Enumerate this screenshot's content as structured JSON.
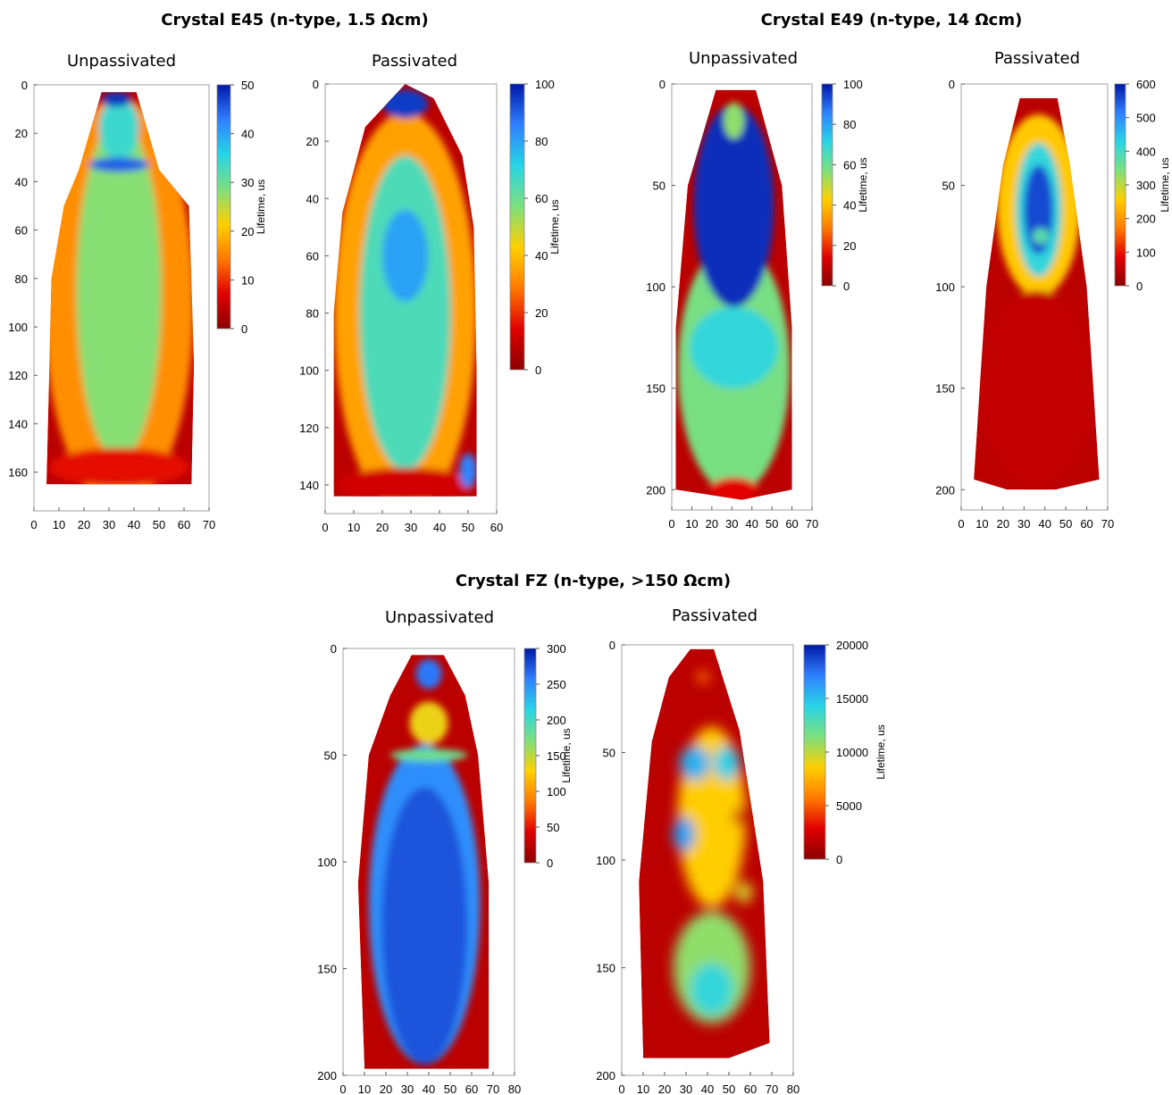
{
  "group_titles": {
    "e45": "Crystal E45 (n-type, 1.5 Ωcm)",
    "e49": "Crystal E49 (n-type, 14 Ωcm)",
    "fz": "Crystal FZ (n-type, >150 Ωcm)"
  },
  "panel_titles": {
    "e45_unpassivated": "Unpassivated",
    "e45_passivated": "Passivated",
    "e49_unpassivated": "Unpassivated",
    "e49_passivated": "Passivated",
    "fz_unpassivated": "Unpassivated",
    "fz_passivated": "Passivated"
  },
  "colorbar_label": "Lifetime, us",
  "colormap": [
    "#8b0000",
    "#e00000",
    "#ff7a00",
    "#ffd000",
    "#7de07d",
    "#28d5e6",
    "#2f80ff",
    "#0018a8"
  ],
  "chart_data": [
    {
      "id": "e45_unpassivated",
      "type": "heatmap",
      "title": "Unpassivated",
      "x_ticks": [
        0,
        10,
        20,
        30,
        40,
        50,
        60,
        70
      ],
      "y_ticks": [
        0,
        20,
        40,
        60,
        80,
        100,
        120,
        140,
        160
      ],
      "xlim": [
        0,
        70
      ],
      "ylim": [
        0,
        176
      ],
      "colorbar": {
        "label": "Lifetime, us",
        "range": [
          0,
          50
        ],
        "ticks": [
          0,
          10,
          20,
          30,
          40,
          50
        ]
      },
      "outline": [
        [
          27,
          3
        ],
        [
          41,
          3
        ],
        [
          50,
          35
        ],
        [
          62,
          50
        ],
        [
          64,
          115
        ],
        [
          63,
          165
        ],
        [
          5,
          165
        ],
        [
          7,
          80
        ],
        [
          12,
          50
        ],
        [
          18,
          35
        ]
      ],
      "regions": [
        {
          "shape": "ellipse",
          "center": [
            34,
            90
          ],
          "radii": [
            30,
            85
          ],
          "value": 16
        },
        {
          "shape": "ellipse",
          "center": [
            34,
            85
          ],
          "radii": [
            17,
            70
          ],
          "value": 28
        },
        {
          "shape": "ellipse",
          "center": [
            34,
            18
          ],
          "radii": [
            8,
            13
          ],
          "value": 34
        },
        {
          "shape": "ellipse",
          "center": [
            34,
            33
          ],
          "radii": [
            12,
            3
          ],
          "value": 45
        },
        {
          "shape": "ellipse",
          "center": [
            33,
            6
          ],
          "radii": [
            6,
            3
          ],
          "value": 48
        },
        {
          "shape": "ellipse",
          "center": [
            34,
            158
          ],
          "radii": [
            28,
            8
          ],
          "value": 8
        }
      ]
    },
    {
      "id": "e45_passivated",
      "type": "heatmap",
      "title": "Passivated",
      "x_ticks": [
        0,
        10,
        20,
        30,
        40,
        50,
        60
      ],
      "y_ticks": [
        0,
        20,
        40,
        60,
        80,
        100,
        120,
        140
      ],
      "xlim": [
        0,
        60
      ],
      "ylim": [
        0,
        150
      ],
      "colorbar": {
        "label": "Lifetime, us",
        "range": [
          0,
          100
        ],
        "ticks": [
          0,
          20,
          40,
          60,
          80,
          100
        ]
      },
      "outline": [
        [
          28,
          0
        ],
        [
          38,
          5
        ],
        [
          48,
          25
        ],
        [
          52,
          50
        ],
        [
          53,
          100
        ],
        [
          53,
          144
        ],
        [
          3,
          144
        ],
        [
          3,
          80
        ],
        [
          6,
          45
        ],
        [
          14,
          15
        ]
      ],
      "regions": [
        {
          "shape": "ellipse",
          "center": [
            28,
            80
          ],
          "radii": [
            25,
            70
          ],
          "value": 35
        },
        {
          "shape": "ellipse",
          "center": [
            28,
            80
          ],
          "radii": [
            16,
            55
          ],
          "value": 65
        },
        {
          "shape": "ellipse",
          "center": [
            28,
            60
          ],
          "radii": [
            8,
            16
          ],
          "value": 80
        },
        {
          "shape": "ellipse",
          "center": [
            28,
            7
          ],
          "radii": [
            8,
            5
          ],
          "value": 95
        },
        {
          "shape": "ellipse",
          "center": [
            28,
            140
          ],
          "radii": [
            24,
            6
          ],
          "value": 12
        },
        {
          "shape": "ellipse",
          "center": [
            50,
            135
          ],
          "radii": [
            3,
            6
          ],
          "value": 85
        }
      ]
    },
    {
      "id": "e49_unpassivated",
      "type": "heatmap",
      "title": "Unpassivated",
      "x_ticks": [
        0,
        10,
        20,
        30,
        40,
        50,
        60,
        70
      ],
      "y_ticks": [
        0,
        50,
        100,
        150,
        200
      ],
      "xlim": [
        0,
        70
      ],
      "ylim": [
        0,
        210
      ],
      "colorbar": {
        "label": "Lifetime, us",
        "range": [
          0,
          100
        ],
        "ticks": [
          0,
          20,
          40,
          60,
          80,
          100
        ]
      },
      "outline": [
        [
          22,
          3
        ],
        [
          42,
          3
        ],
        [
          55,
          50
        ],
        [
          60,
          120
        ],
        [
          60,
          200
        ],
        [
          35,
          205
        ],
        [
          2,
          200
        ],
        [
          2,
          120
        ],
        [
          8,
          50
        ]
      ],
      "regions": [
        {
          "shape": "ellipse",
          "center": [
            31,
            140
          ],
          "radii": [
            28,
            62
          ],
          "value": 58
        },
        {
          "shape": "ellipse",
          "center": [
            31,
            60
          ],
          "radii": [
            20,
            50
          ],
          "value": 97
        },
        {
          "shape": "ellipse",
          "center": [
            31,
            130
          ],
          "radii": [
            22,
            20
          ],
          "value": 70
        },
        {
          "shape": "ellipse",
          "center": [
            31,
            18
          ],
          "radii": [
            5,
            9
          ],
          "value": 55
        },
        {
          "shape": "ellipse",
          "center": [
            31,
            200
          ],
          "radii": [
            12,
            6
          ],
          "value": 15
        }
      ]
    },
    {
      "id": "e49_passivated",
      "type": "heatmap",
      "title": "Passivated",
      "x_ticks": [
        0,
        10,
        20,
        30,
        40,
        50,
        60,
        70
      ],
      "y_ticks": [
        0,
        50,
        100,
        150,
        200
      ],
      "xlim": [
        0,
        70
      ],
      "ylim": [
        0,
        210
      ],
      "colorbar": {
        "label": "Lifetime, us",
        "range": [
          0,
          600
        ],
        "ticks": [
          0,
          100,
          200,
          300,
          400,
          500,
          600
        ]
      },
      "outline": [
        [
          28,
          7
        ],
        [
          46,
          7
        ],
        [
          52,
          40
        ],
        [
          60,
          100
        ],
        [
          66,
          195
        ],
        [
          45,
          200
        ],
        [
          22,
          200
        ],
        [
          6,
          195
        ],
        [
          12,
          100
        ],
        [
          20,
          40
        ]
      ],
      "regions": [
        {
          "shape": "ellipse",
          "center": [
            37,
            60
          ],
          "radii": [
            20,
            45
          ],
          "value": 250
        },
        {
          "shape": "ellipse",
          "center": [
            37,
            62
          ],
          "radii": [
            11,
            33
          ],
          "value": 420
        },
        {
          "shape": "ellipse",
          "center": [
            37,
            62
          ],
          "radii": [
            7,
            22
          ],
          "value": 560
        },
        {
          "shape": "ellipse",
          "center": [
            38,
            75
          ],
          "radii": [
            4,
            4
          ],
          "value": 380
        },
        {
          "shape": "ellipse",
          "center": [
            36,
            150
          ],
          "radii": [
            28,
            48
          ],
          "value": 55
        }
      ]
    },
    {
      "id": "fz_unpassivated",
      "type": "heatmap",
      "title": "Unpassivated",
      "x_ticks": [
        0,
        10,
        20,
        30,
        40,
        50,
        60,
        70,
        80
      ],
      "y_ticks": [
        0,
        50,
        100,
        150,
        200
      ],
      "xlim": [
        0,
        80
      ],
      "ylim": [
        0,
        200
      ],
      "colorbar": {
        "label": "Lifetime, us",
        "range": [
          0,
          300
        ],
        "ticks": [
          0,
          50,
          100,
          150,
          200,
          250,
          300
        ]
      },
      "outline": [
        [
          32,
          3
        ],
        [
          47,
          3
        ],
        [
          57,
          22
        ],
        [
          63,
          50
        ],
        [
          68,
          110
        ],
        [
          68,
          197
        ],
        [
          10,
          197
        ],
        [
          7,
          110
        ],
        [
          12,
          50
        ],
        [
          22,
          22
        ]
      ],
      "regions": [
        {
          "shape": "ellipse",
          "center": [
            38,
            120
          ],
          "radii": [
            26,
            75
          ],
          "value": 250
        },
        {
          "shape": "ellipse",
          "center": [
            38,
            130
          ],
          "radii": [
            20,
            65
          ],
          "value": 275
        },
        {
          "shape": "ellipse",
          "center": [
            40,
            35
          ],
          "radii": [
            9,
            10
          ],
          "value": 135
        },
        {
          "shape": "ellipse",
          "center": [
            40,
            12
          ],
          "radii": [
            6,
            7
          ],
          "value": 260
        },
        {
          "shape": "ellipse",
          "center": [
            40,
            50
          ],
          "radii": [
            18,
            3
          ],
          "value": 180
        }
      ]
    },
    {
      "id": "fz_passivated",
      "type": "heatmap",
      "title": "Passivated",
      "x_ticks": [
        0,
        10,
        20,
        30,
        40,
        50,
        60,
        70,
        80
      ],
      "y_ticks": [
        0,
        50,
        100,
        150,
        200
      ],
      "xlim": [
        0,
        80
      ],
      "ylim": [
        0,
        200
      ],
      "colorbar": {
        "label": "Lifetime, us",
        "range": [
          0,
          20000
        ],
        "ticks": [
          0,
          5000,
          10000,
          15000,
          20000
        ]
      },
      "outline": [
        [
          32,
          2
        ],
        [
          43,
          2
        ],
        [
          55,
          40
        ],
        [
          66,
          110
        ],
        [
          69,
          185
        ],
        [
          50,
          192
        ],
        [
          10,
          192
        ],
        [
          8,
          110
        ],
        [
          14,
          45
        ],
        [
          22,
          15
        ]
      ],
      "regions": [
        {
          "shape": "ellipse",
          "center": [
            42,
            80
          ],
          "radii": [
            16,
            42
          ],
          "value": 8500
        },
        {
          "shape": "ellipse",
          "center": [
            42,
            150
          ],
          "radii": [
            18,
            26
          ],
          "value": 11000
        },
        {
          "shape": "ellipse",
          "center": [
            34,
            55
          ],
          "radii": [
            7,
            8
          ],
          "value": 15500
        },
        {
          "shape": "ellipse",
          "center": [
            29,
            88
          ],
          "radii": [
            5,
            8
          ],
          "value": 16000
        },
        {
          "shape": "ellipse",
          "center": [
            49,
            55
          ],
          "radii": [
            6,
            8
          ],
          "value": 14500
        },
        {
          "shape": "ellipse",
          "center": [
            42,
            160
          ],
          "radii": [
            10,
            12
          ],
          "value": 14000
        },
        {
          "shape": "ellipse",
          "center": [
            57,
            115
          ],
          "radii": [
            4,
            5
          ],
          "value": 9500
        },
        {
          "shape": "ellipse",
          "center": [
            38,
            15
          ],
          "radii": [
            3,
            3
          ],
          "value": 5500
        },
        {
          "shape": "ellipse",
          "center": [
            55,
            80
          ],
          "radii": [
            3,
            4
          ],
          "value": 2000
        }
      ]
    }
  ]
}
